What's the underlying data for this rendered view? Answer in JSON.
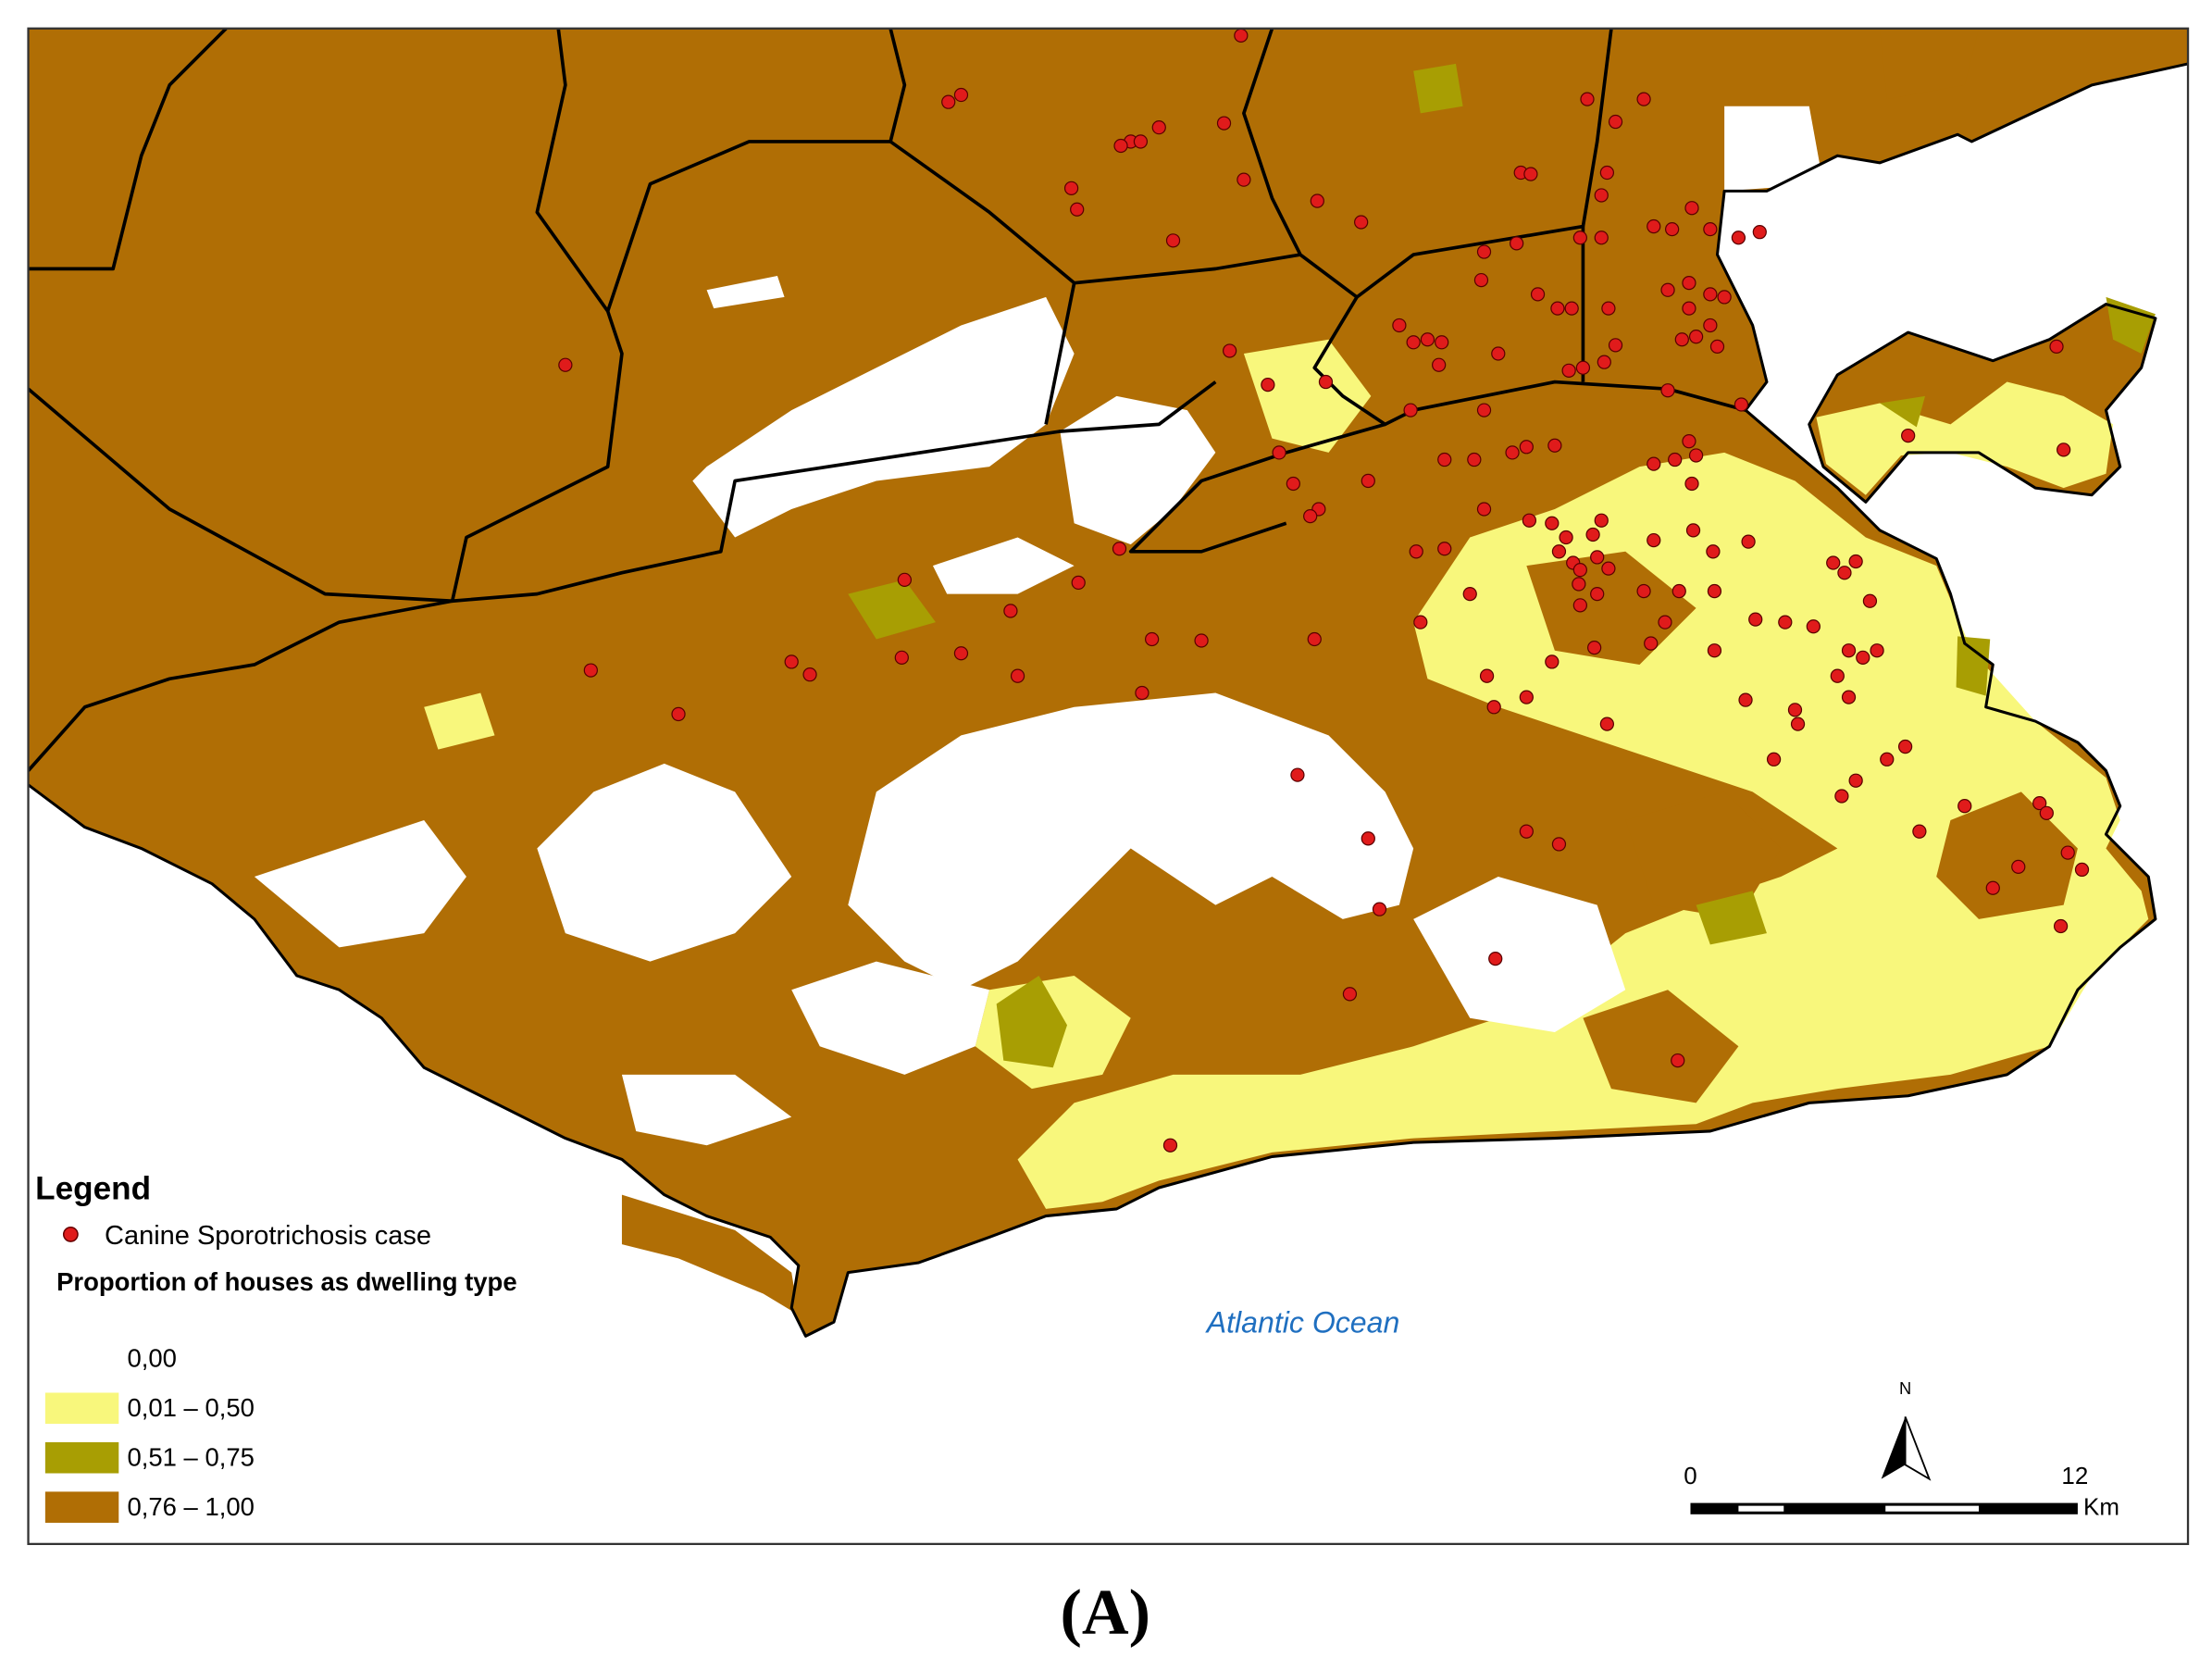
{
  "map": {
    "legend": {
      "title": "Legend",
      "point_label": "Canine Sporotrichosis case",
      "point_color": "#e01b1b",
      "classes_title": "Proportion of houses as dwelling type",
      "classes": [
        {
          "label": "0,00",
          "color": "#ffffff"
        },
        {
          "label": "0,01 – 0,50",
          "color": "#f8f77c"
        },
        {
          "label": "0,51 – 0,75",
          "color": "#a89e03"
        },
        {
          "label": "0,76 – 1,00",
          "color": "#b06e05"
        }
      ]
    },
    "ocean_label": "Atlantic Ocean",
    "scale": {
      "start": "0",
      "end": "12",
      "unit": "Km"
    },
    "north": "N"
  },
  "caption": "(A)"
}
